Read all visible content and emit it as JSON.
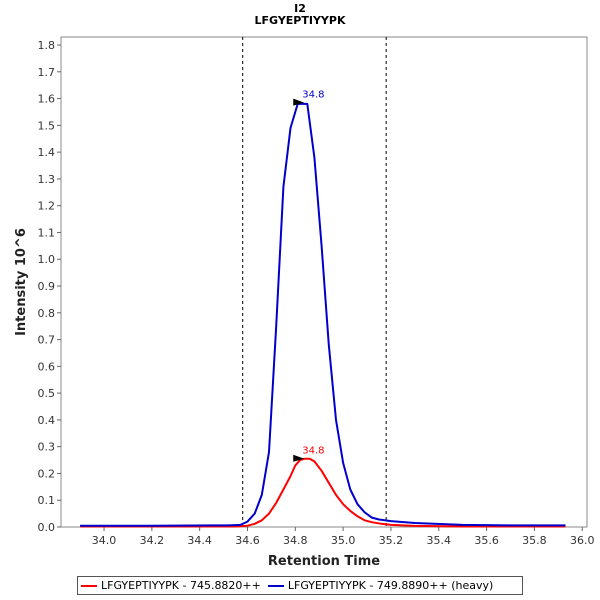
{
  "chart_data": {
    "type": "line",
    "title": "I2",
    "subtitle": "LFGYEPTIYYPK",
    "xlabel": "Retention Time",
    "ylabel": "Intensity 10^6",
    "xlim": [
      33.82,
      36.02
    ],
    "ylim": [
      0,
      1.83
    ],
    "xticks": [
      "34.0",
      "34.2",
      "34.4",
      "34.6",
      "34.8",
      "35.0",
      "35.2",
      "35.4",
      "35.6",
      "35.8",
      "36.0"
    ],
    "yticks": [
      "0.0",
      "0.1",
      "0.2",
      "0.3",
      "0.4",
      "0.5",
      "0.6",
      "0.7",
      "0.8",
      "0.9",
      "1.0",
      "1.1",
      "1.2",
      "1.3",
      "1.4",
      "1.5",
      "1.6",
      "1.7",
      "1.8"
    ],
    "vlines": [
      34.58,
      35.18
    ],
    "series": [
      {
        "name": "LFGYEPTIYYPK - 745.8820++",
        "color": "#ff0000",
        "peak_label": "34.8",
        "peak": [
          34.85,
          0.255
        ],
        "x": [
          33.9,
          34.2,
          34.5,
          34.55,
          34.6,
          34.63,
          34.66,
          34.69,
          34.72,
          34.75,
          34.78,
          34.8,
          34.82,
          34.84,
          34.86,
          34.88,
          34.91,
          34.94,
          34.97,
          35.0,
          35.03,
          35.06,
          35.09,
          35.12,
          35.16,
          35.2,
          35.3,
          35.5,
          35.7,
          35.93
        ],
        "y": [
          0.002,
          0.002,
          0.002,
          0.002,
          0.005,
          0.012,
          0.025,
          0.05,
          0.09,
          0.14,
          0.19,
          0.23,
          0.25,
          0.255,
          0.255,
          0.245,
          0.21,
          0.165,
          0.12,
          0.085,
          0.06,
          0.04,
          0.025,
          0.018,
          0.012,
          0.008,
          0.004,
          0.002,
          0.002,
          0.002
        ]
      },
      {
        "name": "LFGYEPTIYYPK - 749.8890++ (heavy)",
        "color": "#0000cc",
        "peak_label": "34.8",
        "peak": [
          34.85,
          1.585
        ],
        "x": [
          33.9,
          34.2,
          34.45,
          34.52,
          34.57,
          34.6,
          34.63,
          34.66,
          34.69,
          34.72,
          34.75,
          34.78,
          34.81,
          34.85,
          34.88,
          34.91,
          34.94,
          34.97,
          35.0,
          35.03,
          35.06,
          35.09,
          35.12,
          35.15,
          35.2,
          35.3,
          35.5,
          35.7,
          35.93
        ],
        "y": [
          0.005,
          0.005,
          0.006,
          0.006,
          0.008,
          0.02,
          0.05,
          0.12,
          0.28,
          0.75,
          1.27,
          1.49,
          1.58,
          1.58,
          1.38,
          1.05,
          0.68,
          0.4,
          0.24,
          0.14,
          0.085,
          0.055,
          0.035,
          0.028,
          0.022,
          0.015,
          0.008,
          0.006,
          0.006
        ]
      }
    ]
  }
}
